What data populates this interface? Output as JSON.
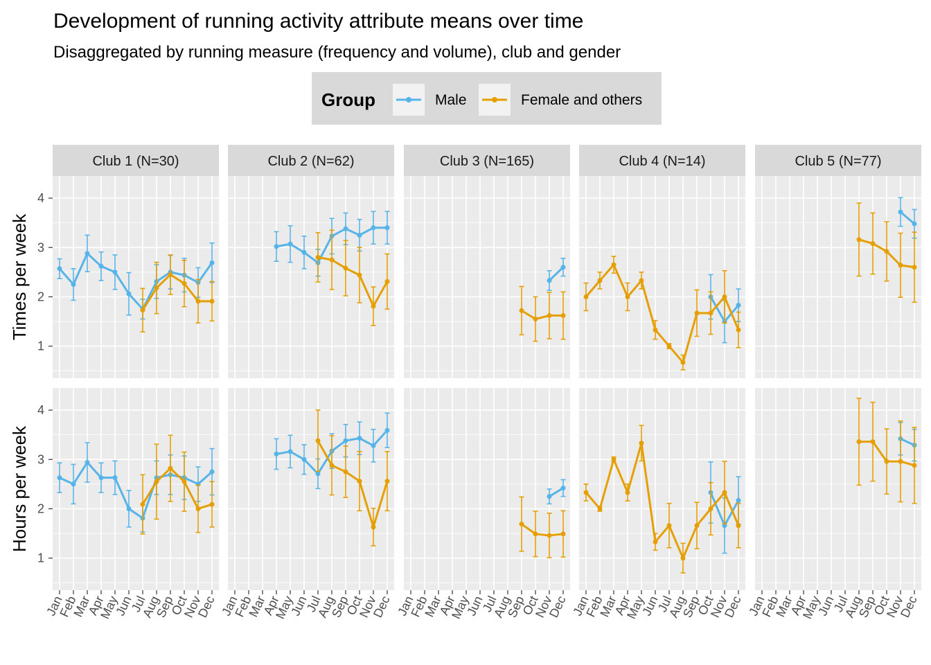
{
  "title": "Development of running activity attribute means over time",
  "subtitle": "Disaggregated by running measure (frequency and volume), club and gender",
  "legend": {
    "title": "Group",
    "items": [
      {
        "label": "Male",
        "color": "#56B4E9"
      },
      {
        "label": "Female and others",
        "color": "#E69F00"
      }
    ]
  },
  "chart_data": {
    "type": "line",
    "categories": [
      "Jan",
      "Feb",
      "Mar",
      "Apr",
      "May",
      "Jun",
      "Jul",
      "Aug",
      "Sep",
      "Oct",
      "Nov",
      "Dec"
    ],
    "ylim": [
      0.35,
      4.45
    ],
    "yticks": [
      1,
      2,
      3,
      4
    ],
    "grid": true,
    "legend_position": "top",
    "clubs": [
      "Club 1 (N=30)",
      "Club 2 (N=62)",
      "Club 3 (N=165)",
      "Club 4 (N=14)",
      "Club 5 (N=77)"
    ],
    "rows": [
      {
        "label": "Times per week",
        "panels": [
          {
            "Male": [
              [
                2.57,
                0.2
              ],
              [
                2.25,
                0.32
              ],
              [
                2.88,
                0.37
              ],
              [
                2.62,
                0.29
              ],
              [
                2.5,
                0.35
              ],
              [
                2.06,
                0.43
              ],
              [
                1.75,
                0.2
              ],
              [
                2.31,
                0.34
              ],
              [
                2.5,
                0.34
              ],
              [
                2.44,
                0.34
              ],
              [
                2.29,
                0.3
              ],
              [
                2.69,
                0.4
              ]
            ],
            "Female and others": [
              null,
              null,
              null,
              null,
              null,
              null,
              [
                1.73,
                0.44
              ],
              [
                2.18,
                0.52
              ],
              [
                2.45,
                0.4
              ],
              [
                2.27,
                0.47
              ],
              [
                1.91,
                0.44
              ],
              [
                1.91,
                0.4
              ]
            ]
          },
          {
            "Male": [
              null,
              null,
              null,
              [
                3.02,
                0.3
              ],
              [
                3.07,
                0.37
              ],
              [
                2.9,
                0.33
              ],
              [
                2.69,
                0.27
              ],
              [
                3.23,
                0.36
              ],
              [
                3.38,
                0.32
              ],
              [
                3.25,
                0.32
              ],
              [
                3.4,
                0.33
              ],
              [
                3.4,
                0.33
              ]
            ],
            "Female and others": [
              null,
              null,
              null,
              null,
              null,
              null,
              [
                2.8,
                0.5
              ],
              [
                2.75,
                0.6
              ],
              [
                2.58,
                0.56
              ],
              [
                2.44,
                0.56
              ],
              [
                1.81,
                0.39
              ],
              [
                2.31,
                0.56
              ]
            ]
          },
          {
            "Male": [
              null,
              null,
              null,
              null,
              null,
              null,
              null,
              null,
              null,
              null,
              [
                2.33,
                0.2
              ],
              [
                2.6,
                0.18
              ]
            ],
            "Female and others": [
              null,
              null,
              null,
              null,
              null,
              null,
              null,
              null,
              [
                1.72,
                0.49
              ],
              [
                1.55,
                0.45
              ],
              [
                1.62,
                0.47
              ],
              [
                1.62,
                0.48
              ]
            ]
          },
          {
            "Male": [
              null,
              null,
              null,
              null,
              null,
              null,
              null,
              null,
              null,
              [
                2.0,
                0.45
              ],
              [
                1.5,
                0.43
              ],
              [
                1.83,
                0.33
              ]
            ],
            "Female and others": [
              [
                2.0,
                0.28
              ],
              [
                2.33,
                0.17
              ],
              [
                2.65,
                0.17
              ],
              [
                2.0,
                0.28
              ],
              [
                2.33,
                0.17
              ],
              [
                1.33,
                0.19
              ],
              [
                1.0,
                0.05
              ],
              [
                0.67,
                0.15
              ],
              [
                1.67,
                0.47
              ],
              [
                1.67,
                0.43
              ],
              [
                2.0,
                0.53
              ],
              [
                1.33,
                0.36
              ]
            ]
          },
          {
            "Male": [
              null,
              null,
              null,
              null,
              null,
              null,
              null,
              null,
              null,
              null,
              [
                3.72,
                0.29
              ],
              [
                3.48,
                0.29
              ]
            ],
            "Female and others": [
              null,
              null,
              null,
              null,
              null,
              null,
              null,
              [
                3.16,
                0.74
              ],
              [
                3.08,
                0.62
              ],
              [
                2.92,
                0.6
              ],
              [
                2.64,
                0.65
              ],
              [
                2.6,
                0.71
              ]
            ]
          }
        ]
      },
      {
        "label": "Hours per week",
        "panels": [
          {
            "Male": [
              [
                2.63,
                0.3
              ],
              [
                2.5,
                0.4
              ],
              [
                2.94,
                0.4
              ],
              [
                2.63,
                0.3
              ],
              [
                2.63,
                0.34
              ],
              [
                2.0,
                0.37
              ],
              [
                1.81,
                0.28
              ],
              [
                2.63,
                0.34
              ],
              [
                2.69,
                0.4
              ],
              [
                2.63,
                0.44
              ],
              [
                2.5,
                0.35
              ],
              [
                2.75,
                0.47
              ]
            ],
            "Female and others": [
              null,
              null,
              null,
              null,
              null,
              null,
              [
                2.09,
                0.6
              ],
              [
                2.55,
                0.76
              ],
              [
                2.82,
                0.67
              ],
              [
                2.55,
                0.6
              ],
              [
                2.0,
                0.48
              ],
              [
                2.09,
                0.46
              ]
            ]
          },
          {
            "Male": [
              null,
              null,
              null,
              [
                3.11,
                0.31
              ],
              [
                3.16,
                0.33
              ],
              [
                3.0,
                0.3
              ],
              [
                2.71,
                0.3
              ],
              [
                3.17,
                0.35
              ],
              [
                3.38,
                0.33
              ],
              [
                3.43,
                0.33
              ],
              [
                3.28,
                0.33
              ],
              [
                3.59,
                0.35
              ]
            ],
            "Female and others": [
              null,
              null,
              null,
              null,
              null,
              null,
              [
                3.38,
                0.62
              ],
              [
                2.88,
                0.6
              ],
              [
                2.75,
                0.52
              ],
              [
                2.56,
                0.6
              ],
              [
                1.63,
                0.38
              ],
              [
                2.56,
                0.6
              ]
            ]
          },
          {
            "Male": [
              null,
              null,
              null,
              null,
              null,
              null,
              null,
              null,
              null,
              null,
              [
                2.25,
                0.15
              ],
              [
                2.42,
                0.17
              ]
            ],
            "Female and others": [
              null,
              null,
              null,
              null,
              null,
              null,
              null,
              null,
              [
                1.69,
                0.55
              ],
              [
                1.49,
                0.46
              ],
              [
                1.46,
                0.45
              ],
              [
                1.49,
                0.47
              ]
            ]
          },
          {
            "Male": [
              null,
              null,
              null,
              null,
              null,
              null,
              null,
              null,
              null,
              [
                2.33,
                0.62
              ],
              [
                1.66,
                0.56
              ],
              [
                2.17,
                0.48
              ]
            ],
            "Female and others": [
              [
                2.33,
                0.17
              ],
              [
                2.0,
                0.05
              ],
              [
                3.0,
                0.05
              ],
              [
                2.33,
                0.17
              ],
              [
                3.33,
                0.36
              ],
              [
                1.33,
                0.17
              ],
              [
                1.66,
                0.45
              ],
              [
                1.0,
                0.3
              ],
              [
                1.66,
                0.47
              ],
              [
                2.0,
                0.53
              ],
              [
                2.33,
                0.63
              ],
              [
                1.66,
                0.45
              ]
            ]
          },
          {
            "Male": [
              null,
              null,
              null,
              null,
              null,
              null,
              null,
              null,
              null,
              null,
              [
                3.42,
                0.33
              ],
              [
                3.29,
                0.32
              ]
            ],
            "Female and others": [
              null,
              null,
              null,
              null,
              null,
              null,
              null,
              [
                3.36,
                0.88
              ],
              [
                3.36,
                0.8
              ],
              [
                2.96,
                0.66
              ],
              [
                2.96,
                0.82
              ],
              [
                2.88,
                0.77
              ]
            ]
          }
        ]
      }
    ]
  }
}
